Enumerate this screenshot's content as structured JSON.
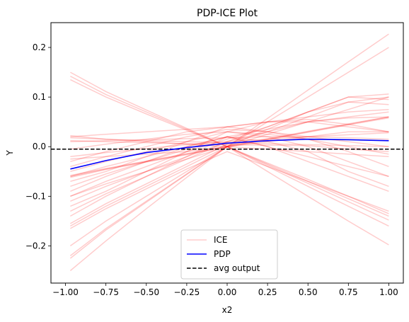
{
  "chart_data": {
    "type": "line",
    "title": "PDP-ICE Plot",
    "xlabel": "x2",
    "ylabel": "Y",
    "xlim": [
      -1.09,
      1.09
    ],
    "ylim": [
      -0.275,
      0.25
    ],
    "xticks": [
      -1.0,
      -0.75,
      -0.5,
      -0.25,
      0.0,
      0.25,
      0.5,
      0.75,
      1.0
    ],
    "xtick_labels": [
      "−1.00",
      "−0.75",
      "−0.50",
      "−0.25",
      "0.00",
      "0.25",
      "0.50",
      "0.75",
      "1.00"
    ],
    "yticks": [
      -0.2,
      -0.1,
      0.0,
      0.1,
      0.2
    ],
    "ytick_labels": [
      "−0.2",
      "−0.1",
      "0.0",
      "0.1",
      "0.2"
    ],
    "grid": false,
    "legend": {
      "placement": "lower-center",
      "entries": [
        {
          "label": "ICE",
          "color": "#ff0000",
          "style": "solid",
          "alpha": 0.2
        },
        {
          "label": "PDP",
          "color": "#0000ff",
          "style": "solid"
        },
        {
          "label": "avg output",
          "color": "#000000",
          "style": "dashed"
        }
      ]
    },
    "ice_color": "#ff0000",
    "pdp_color": "#0000ff",
    "avg_color": "#000000",
    "avg_output": -0.005,
    "x": [
      -0.97,
      -0.75,
      -0.5,
      -0.25,
      0.0,
      0.25,
      0.5,
      0.75,
      1.0
    ],
    "pdp": [
      -0.045,
      -0.028,
      -0.012,
      -0.002,
      0.007,
      0.012,
      0.015,
      0.014,
      0.012
    ],
    "ice": [
      [
        -0.06,
        -0.045,
        -0.03,
        -0.015,
        0.0,
        0.015,
        0.03,
        0.045,
        0.06
      ],
      [
        -0.058,
        -0.044,
        -0.029,
        -0.014,
        0.001,
        0.016,
        0.031,
        0.046,
        0.06
      ],
      [
        -0.062,
        -0.046,
        -0.031,
        -0.016,
        -0.001,
        0.014,
        0.029,
        0.044,
        0.058
      ],
      [
        0.15,
        0.111,
        0.074,
        0.037,
        0.0,
        -0.037,
        -0.074,
        -0.111,
        -0.148
      ],
      [
        0.142,
        0.105,
        0.07,
        0.035,
        0.0,
        -0.035,
        -0.07,
        -0.105,
        -0.14
      ],
      [
        0.135,
        0.1,
        0.066,
        0.033,
        0.0,
        -0.033,
        -0.066,
        -0.1,
        -0.135
      ],
      [
        -0.25,
        -0.19,
        -0.125,
        -0.062,
        0.0,
        0.057,
        0.114,
        0.171,
        0.227
      ],
      [
        -0.225,
        -0.168,
        -0.112,
        -0.056,
        0.0,
        0.05,
        0.1,
        0.15,
        0.2
      ],
      [
        -0.22,
        -0.165,
        -0.11,
        -0.055,
        0.0,
        -0.05,
        -0.1,
        -0.15,
        -0.198
      ],
      [
        -0.16,
        -0.12,
        -0.08,
        -0.04,
        0.0,
        0.035,
        0.07,
        0.1,
        0.095
      ],
      [
        -0.165,
        -0.125,
        -0.085,
        -0.045,
        -0.01,
        -0.04,
        -0.07,
        -0.1,
        -0.13
      ],
      [
        -0.155,
        -0.115,
        -0.075,
        -0.035,
        0.005,
        0.03,
        0.06,
        0.09,
        0.1
      ],
      [
        -0.13,
        -0.095,
        -0.06,
        -0.025,
        0.01,
        0.04,
        0.07,
        0.1,
        0.106
      ],
      [
        -0.11,
        -0.08,
        -0.05,
        -0.02,
        0.01,
        0.03,
        0.05,
        0.06,
        0.07
      ],
      [
        -0.1,
        -0.07,
        -0.04,
        -0.01,
        0.015,
        0.04,
        0.07,
        0.09,
        0.085
      ],
      [
        -0.09,
        -0.06,
        -0.03,
        0.0,
        0.02,
        0.01,
        -0.01,
        -0.05,
        -0.08
      ],
      [
        -0.08,
        -0.055,
        -0.03,
        -0.005,
        0.02,
        0.0,
        -0.02,
        -0.04,
        -0.06
      ],
      [
        -0.05,
        -0.03,
        -0.01,
        0.01,
        0.03,
        0.02,
        0.0,
        -0.03,
        -0.06
      ],
      [
        -0.04,
        -0.02,
        0.0,
        0.02,
        0.035,
        0.03,
        0.015,
        -0.01,
        -0.04
      ],
      [
        -0.03,
        -0.01,
        0.01,
        0.03,
        0.04,
        0.05,
        0.055,
        0.045,
        0.03
      ],
      [
        0.022,
        0.015,
        0.01,
        0.005,
        0.0,
        -0.005,
        -0.01,
        -0.015,
        -0.02
      ],
      [
        0.018,
        0.015,
        0.012,
        0.01,
        0.008,
        0.006,
        0.004,
        0.002,
        0.0
      ],
      [
        0.012,
        0.01,
        0.008,
        0.006,
        0.004,
        0.003,
        0.002,
        -0.005,
        -0.01
      ],
      [
        -0.02,
        -0.012,
        -0.004,
        0.004,
        0.01,
        0.015,
        0.02,
        0.024,
        0.028
      ],
      [
        -0.025,
        -0.02,
        -0.015,
        -0.01,
        0.0,
        0.01,
        0.02,
        0.03,
        0.03
      ],
      [
        0.02,
        0.025,
        0.03,
        0.035,
        0.04,
        0.03,
        0.02,
        0.01,
        0.0
      ],
      [
        -0.07,
        -0.05,
        -0.02,
        0.01,
        0.04,
        0.05,
        0.06,
        0.07,
        0.075
      ],
      [
        -0.12,
        -0.09,
        -0.05,
        -0.01,
        0.03,
        0.05,
        0.05,
        0.04,
        0.03
      ],
      [
        -0.14,
        -0.1,
        -0.06,
        -0.02,
        0.02,
        0.0,
        -0.03,
        -0.06,
        -0.09
      ],
      [
        -0.2,
        -0.15,
        -0.1,
        -0.05,
        0.0,
        -0.04,
        -0.08,
        -0.12,
        -0.16
      ],
      [
        -0.005,
        0.005,
        0.015,
        0.025,
        0.03,
        0.025,
        0.015,
        0.0,
        -0.015
      ],
      [
        -0.06,
        -0.04,
        -0.02,
        0.0,
        0.02,
        0.035,
        0.05,
        0.058,
        0.06
      ],
      [
        0.01,
        0.012,
        0.014,
        0.016,
        0.018,
        0.02,
        0.02,
        0.018,
        0.015
      ],
      [
        -0.1,
        -0.075,
        -0.05,
        -0.025,
        0.0,
        0.025,
        0.05,
        0.075,
        0.1
      ]
    ]
  }
}
